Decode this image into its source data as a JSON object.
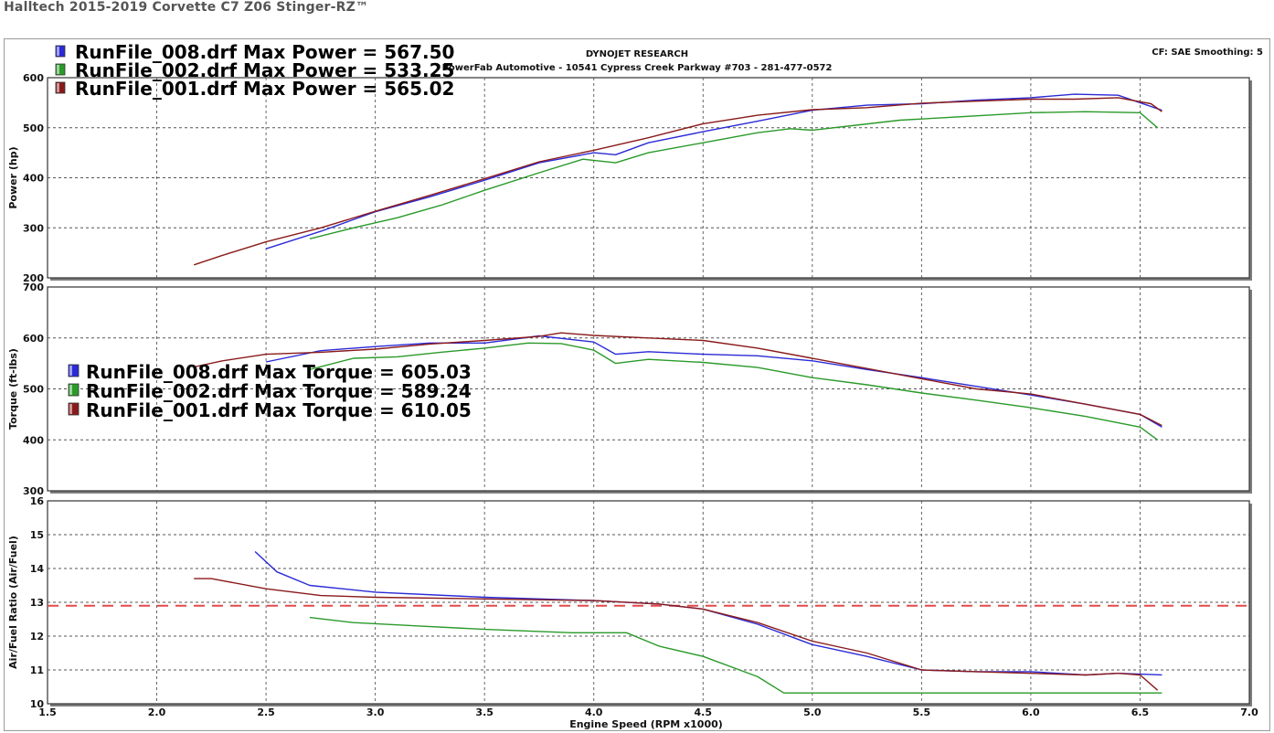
{
  "page": {
    "title": "Halltech 2015-2019 Corvette C7 Z06 Stinger-RZ™"
  },
  "header": {
    "line1": "DYNOJET RESEARCH",
    "line2": "PowerFab Automotive - 10541 Cypress Creek Parkway #703 - 281-477-0572",
    "right": "CF: SAE  Smoothing: 5"
  },
  "colors": {
    "run008": "#2a2ad6",
    "run002": "#2a9a2a",
    "run001": "#8a1a1a",
    "target": "#e24a4a"
  },
  "chart_data": {
    "type": "line",
    "x_label": "Engine Speed (RPM x1000)",
    "x_range": [
      1.5,
      7.0
    ],
    "x_ticks": [
      "1.5",
      "2.0",
      "2.5",
      "3.0",
      "3.5",
      "4.0",
      "4.5",
      "5.0",
      "5.5",
      "6.0",
      "6.5",
      "7.0"
    ],
    "grid": true,
    "panels": [
      {
        "id": "power",
        "ylabel": "Power (hp)",
        "ylim": [
          200,
          600
        ],
        "yticks": [
          "200",
          "300",
          "400",
          "500",
          "600"
        ],
        "legend": [
          "RunFile_008.drf Max Power = 567.50",
          "RunFile_002.drf Max Power = 533.25",
          "RunFile_001.drf Max Power = 565.02"
        ],
        "legend_placement": "top-left",
        "series": [
          {
            "name": "RunFile_008.drf",
            "color_key": "run008",
            "x": [
              2.5,
              2.75,
              3.0,
              3.25,
              3.5,
              3.75,
              4.0,
              4.1,
              4.25,
              4.5,
              4.75,
              5.0,
              5.25,
              5.5,
              5.75,
              6.0,
              6.2,
              6.4,
              6.6
            ],
            "y": [
              258,
              293,
              332,
              362,
              395,
              430,
              450,
              446,
              470,
              492,
              513,
              535,
              545,
              548,
              555,
              560,
              567,
              565,
              535
            ]
          },
          {
            "name": "RunFile_002.drf",
            "color_key": "run002",
            "x": [
              2.7,
              2.9,
              3.1,
              3.3,
              3.5,
              3.75,
              3.95,
              4.1,
              4.25,
              4.5,
              4.75,
              4.9,
              5.0,
              5.2,
              5.4,
              5.6,
              5.8,
              6.0,
              6.25,
              6.5,
              6.58
            ],
            "y": [
              278,
              300,
              320,
              345,
              375,
              410,
              437,
              430,
              450,
              470,
              490,
              498,
              495,
              505,
              515,
              520,
              525,
              530,
              532,
              530,
              500
            ]
          },
          {
            "name": "RunFile_001.drf",
            "color_key": "run001",
            "x": [
              2.17,
              2.3,
              2.5,
              2.75,
              3.0,
              3.25,
              3.5,
              3.75,
              4.0,
              4.25,
              4.5,
              4.75,
              5.0,
              5.25,
              5.5,
              5.75,
              6.0,
              6.2,
              6.4,
              6.55,
              6.6
            ],
            "y": [
              226,
              245,
              272,
              300,
              333,
              365,
              398,
              432,
              455,
              480,
              508,
              525,
              536,
              540,
              549,
              553,
              557,
              557,
              560,
              548,
              532
            ]
          }
        ]
      },
      {
        "id": "torque",
        "ylabel": "Torque (ft-lbs)",
        "ylim": [
          300,
          700
        ],
        "yticks": [
          "300",
          "400",
          "500",
          "600",
          "700"
        ],
        "legend": [
          "RunFile_008.drf Max Torque = 605.03",
          "RunFile_002.drf Max Torque = 589.24",
          "RunFile_001.drf Max Torque = 610.05"
        ],
        "legend_placement": "middle-left",
        "series": [
          {
            "name": "RunFile_008.drf",
            "color_key": "run008",
            "x": [
              2.5,
              2.75,
              3.0,
              3.25,
              3.5,
              3.75,
              4.0,
              4.1,
              4.25,
              4.5,
              4.75,
              5.0,
              5.25,
              5.5,
              5.75,
              6.0,
              6.25,
              6.5,
              6.6
            ],
            "y": [
              553,
              575,
              583,
              590,
              590,
              604,
              592,
              568,
              573,
              568,
              565,
              555,
              538,
              522,
              505,
              488,
              470,
              450,
              425
            ]
          },
          {
            "name": "RunFile_002.drf",
            "color_key": "run002",
            "x": [
              2.7,
              2.9,
              3.1,
              3.3,
              3.5,
              3.7,
              3.85,
              4.0,
              4.1,
              4.25,
              4.5,
              4.75,
              5.0,
              5.25,
              5.5,
              5.75,
              6.0,
              6.25,
              6.5,
              6.58
            ],
            "y": [
              538,
              560,
              563,
              572,
              580,
              590,
              589,
              576,
              550,
              558,
              552,
              542,
              522,
              508,
              492,
              478,
              463,
              446,
              425,
              400
            ]
          },
          {
            "name": "RunFile_001.drf",
            "color_key": "run001",
            "x": [
              2.17,
              2.3,
              2.5,
              2.75,
              3.0,
              3.25,
              3.5,
              3.75,
              3.85,
              4.0,
              4.25,
              4.5,
              4.75,
              5.0,
              5.25,
              5.5,
              5.75,
              6.0,
              6.25,
              6.5,
              6.6
            ],
            "y": [
              543,
              555,
              568,
              572,
              578,
              588,
              595,
              603,
              610,
              605,
              600,
              595,
              580,
              560,
              540,
              520,
              500,
              490,
              470,
              450,
              428
            ]
          }
        ]
      },
      {
        "id": "afr",
        "ylabel": "Air/Fuel Ratio (Air/Fuel)",
        "ylim": [
          10,
          16
        ],
        "yticks": [
          "10",
          "11",
          "12",
          "13",
          "14",
          "15",
          "16"
        ],
        "target_line": 12.9,
        "series": [
          {
            "name": "RunFile_008.drf",
            "color_key": "run008",
            "x": [
              2.45,
              2.55,
              2.7,
              3.0,
              3.5,
              4.0,
              4.3,
              4.5,
              4.75,
              5.0,
              5.25,
              5.5,
              5.75,
              6.0,
              6.25,
              6.4,
              6.6
            ],
            "y": [
              14.5,
              13.9,
              13.5,
              13.3,
              13.15,
              13.05,
              12.95,
              12.8,
              12.35,
              11.75,
              11.4,
              11.0,
              10.95,
              10.95,
              10.85,
              10.9,
              10.85
            ]
          },
          {
            "name": "RunFile_002.drf",
            "color_key": "run002",
            "x": [
              2.7,
              2.9,
              3.2,
              3.5,
              3.9,
              4.15,
              4.3,
              4.5,
              4.75,
              4.87,
              5.0,
              5.5,
              6.0,
              6.5,
              6.6
            ],
            "y": [
              12.55,
              12.4,
              12.3,
              12.2,
              12.1,
              12.1,
              11.7,
              11.4,
              10.8,
              10.32,
              10.32,
              10.32,
              10.32,
              10.32,
              10.32
            ]
          },
          {
            "name": "RunFile_001.drf",
            "color_key": "run001",
            "x": [
              2.17,
              2.25,
              2.5,
              2.75,
              3.0,
              3.5,
              4.0,
              4.3,
              4.5,
              4.75,
              5.0,
              5.25,
              5.5,
              5.75,
              6.0,
              6.25,
              6.4,
              6.5,
              6.58
            ],
            "y": [
              13.7,
              13.7,
              13.4,
              13.2,
              13.15,
              13.1,
              13.05,
              12.95,
              12.8,
              12.4,
              11.85,
              11.5,
              11.0,
              10.95,
              10.9,
              10.85,
              10.9,
              10.85,
              10.4
            ]
          }
        ]
      }
    ]
  }
}
